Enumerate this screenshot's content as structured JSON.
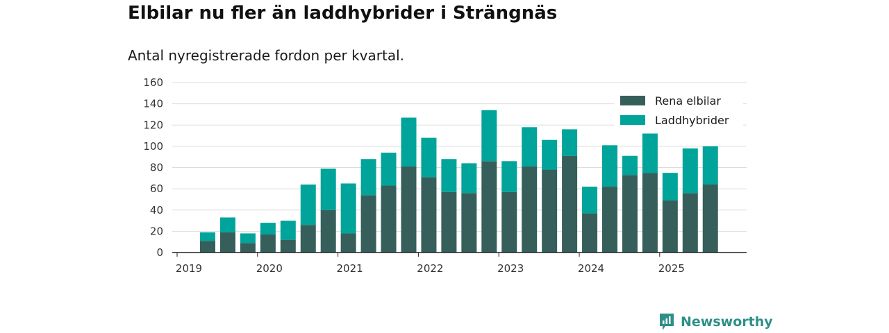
{
  "title": "Elbilar nu fler än laddhybrider i Strängnäs",
  "subtitle": "Antal nyregistrerade fordon per kvartal.",
  "brand": {
    "name": "Newsworthy",
    "icon": "newsworthy-logo-icon",
    "color": "#2e8f87"
  },
  "colors": {
    "rena_elbilar": "#365f5b",
    "laddhybrider": "#00a49a"
  },
  "chart_data": {
    "type": "bar",
    "stacked": true,
    "categories": [
      "2019 Q2",
      "2019 Q3",
      "2019 Q4",
      "2020 Q1",
      "2020 Q2",
      "2020 Q3",
      "2020 Q4",
      "2021 Q1",
      "2021 Q2",
      "2021 Q3",
      "2021 Q4",
      "2022 Q1",
      "2022 Q2",
      "2022 Q3",
      "2022 Q4",
      "2023 Q1",
      "2023 Q2",
      "2023 Q3",
      "2023 Q4",
      "2024 Q1",
      "2024 Q2",
      "2024 Q3",
      "2024 Q4",
      "2025 Q1",
      "2025 Q2",
      "2025 Q3"
    ],
    "series": [
      {
        "name": "Rena elbilar",
        "values": [
          11,
          19,
          9,
          17,
          12,
          26,
          40,
          18,
          54,
          63,
          81,
          71,
          57,
          56,
          86,
          57,
          81,
          78,
          91,
          37,
          62,
          73,
          75,
          49,
          56,
          64
        ]
      },
      {
        "name": "Laddhybrider",
        "values": [
          8,
          14,
          9,
          11,
          18,
          38,
          39,
          47,
          34,
          31,
          46,
          37,
          31,
          28,
          48,
          29,
          37,
          28,
          25,
          25,
          39,
          18,
          37,
          26,
          42,
          36
        ]
      }
    ],
    "x_ticks": [
      "2019",
      "2020",
      "2021",
      "2022",
      "2023",
      "2024",
      "2025"
    ],
    "y_ticks": [
      "0",
      "20",
      "40",
      "60",
      "80",
      "100",
      "120",
      "140",
      "160"
    ],
    "ylim": [
      0,
      160
    ],
    "grid": true,
    "legend_position": "top-right",
    "xlabel": "",
    "ylabel": ""
  }
}
